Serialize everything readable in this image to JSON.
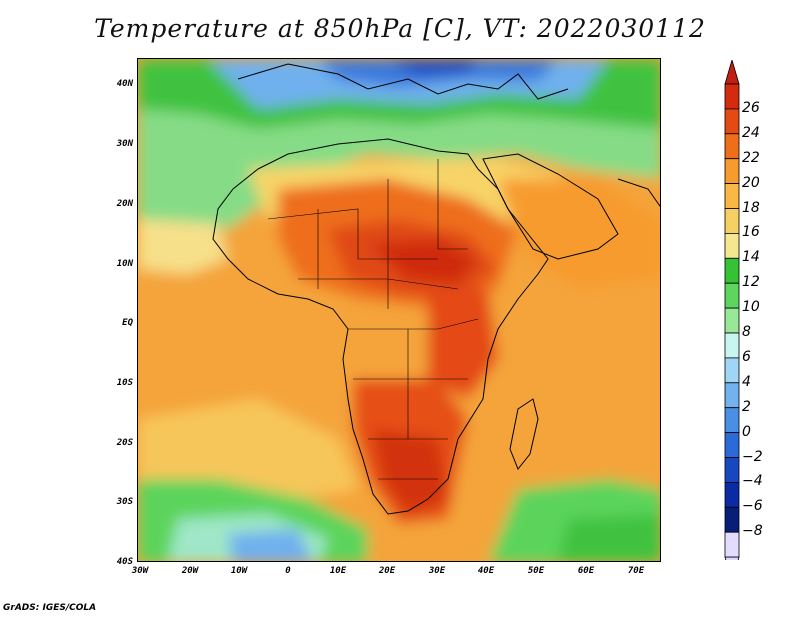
{
  "title": "Temperature at 850hPa [C], VT: 2022030112",
  "credit": "GrADS: IGES/COLA",
  "map": {
    "lat_labels": [
      "40N",
      "30N",
      "20N",
      "10N",
      "EQ",
      "10S",
      "20S",
      "30S",
      "40S"
    ],
    "lon_labels": [
      "30W",
      "20W",
      "10W",
      "0",
      "10E",
      "20E",
      "30E",
      "40E",
      "50E",
      "60E",
      "70E"
    ],
    "lat_range": [
      -40,
      44
    ],
    "lon_range": [
      -30,
      75
    ]
  },
  "colorbar": {
    "labels": [
      "26",
      "24",
      "22",
      "20",
      "18",
      "16",
      "14",
      "12",
      "10",
      "8",
      "6",
      "4",
      "2",
      "0",
      "−2",
      "−4",
      "−6",
      "−8"
    ],
    "colors": [
      "#d42a0e",
      "#e44a12",
      "#ef6e1a",
      "#f79b2e",
      "#f9b745",
      "#f7d063",
      "#f5e690",
      "#35c235",
      "#5ed65e",
      "#98e898",
      "#c9f5f0",
      "#9fd6f5",
      "#71b2ef",
      "#4a8fe6",
      "#2b6bd9",
      "#1748c2",
      "#0a2aa6",
      "#081f7a",
      "#e2dcff"
    ],
    "top_color": "#c21f10",
    "bottom_color": "#ddd8ff"
  }
}
